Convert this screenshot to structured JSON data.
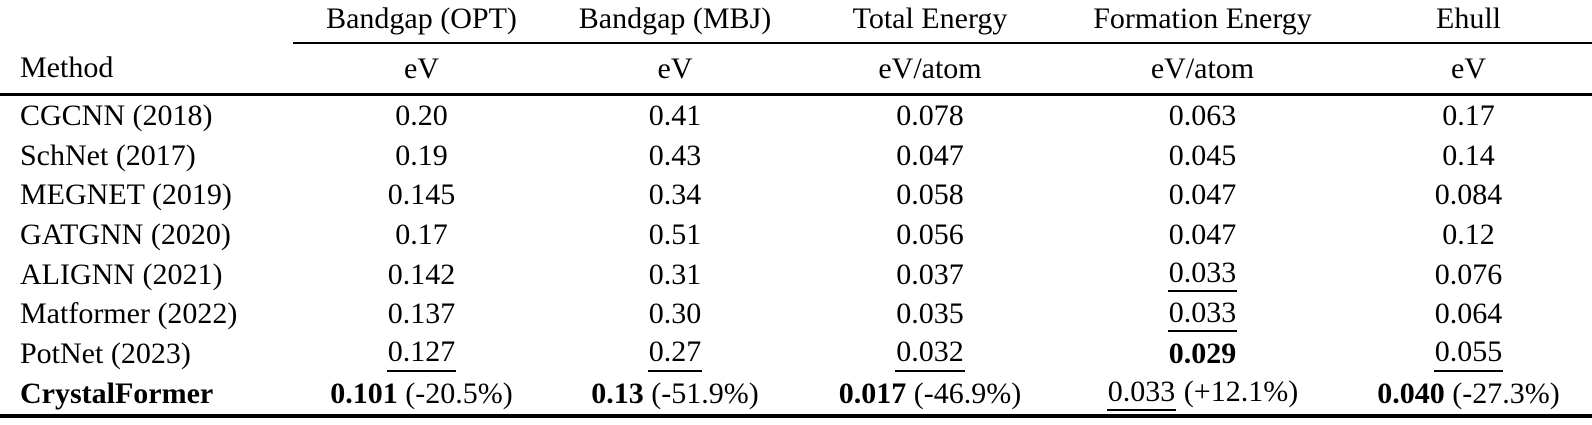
{
  "colors": {
    "text": "#000000",
    "background": "#ffffff",
    "rule": "#000000"
  },
  "table": {
    "method_header": "Method",
    "col_groups": [
      {
        "label": "Bandgap (OPT)",
        "unit": "eV"
      },
      {
        "label": "Bandgap (MBJ)",
        "unit": "eV"
      },
      {
        "label": "Total Energy",
        "unit": "eV/atom"
      },
      {
        "label": "Formation Energy",
        "unit": "eV/atom"
      },
      {
        "label": "Ehull",
        "unit": "eV"
      }
    ],
    "rows": [
      {
        "method": "CGCNN (2018)",
        "cells": [
          {
            "v": "0.20"
          },
          {
            "v": "0.41"
          },
          {
            "v": "0.078"
          },
          {
            "v": "0.063"
          },
          {
            "v": "0.17"
          }
        ]
      },
      {
        "method": "SchNet (2017)",
        "cells": [
          {
            "v": "0.19"
          },
          {
            "v": "0.43"
          },
          {
            "v": "0.047"
          },
          {
            "v": "0.045"
          },
          {
            "v": "0.14"
          }
        ]
      },
      {
        "method": "MEGNET (2019)",
        "cells": [
          {
            "v": "0.145"
          },
          {
            "v": "0.34"
          },
          {
            "v": "0.058"
          },
          {
            "v": "0.047"
          },
          {
            "v": "0.084"
          }
        ]
      },
      {
        "method": "GATGNN (2020)",
        "cells": [
          {
            "v": "0.17"
          },
          {
            "v": "0.51"
          },
          {
            "v": "0.056"
          },
          {
            "v": "0.047"
          },
          {
            "v": "0.12"
          }
        ]
      },
      {
        "method": "ALIGNN (2021)",
        "cells": [
          {
            "v": "0.142"
          },
          {
            "v": "0.31"
          },
          {
            "v": "0.037"
          },
          {
            "v": "0.033",
            "style": "underline"
          },
          {
            "v": "0.076"
          }
        ]
      },
      {
        "method": "Matformer (2022)",
        "cells": [
          {
            "v": "0.137"
          },
          {
            "v": "0.30"
          },
          {
            "v": "0.035"
          },
          {
            "v": "0.033",
            "style": "underline"
          },
          {
            "v": "0.064"
          }
        ]
      },
      {
        "method": "PotNet (2023)",
        "cells": [
          {
            "v": "0.127",
            "style": "underline"
          },
          {
            "v": "0.27",
            "style": "underline"
          },
          {
            "v": "0.032",
            "style": "underline"
          },
          {
            "v": "0.029",
            "style": "bold"
          },
          {
            "v": "0.055",
            "style": "underline"
          }
        ]
      },
      {
        "method": "CrystalFormer",
        "method_bold": true,
        "cells": [
          {
            "v": "0.101",
            "style": "bold",
            "pct": "(-20.5%)"
          },
          {
            "v": "0.13",
            "style": "bold",
            "pct": "(-51.9%)"
          },
          {
            "v": "0.017",
            "style": "bold",
            "pct": "(-46.9%)"
          },
          {
            "v": "0.033",
            "style": "underline",
            "pct": "(+12.1%)"
          },
          {
            "v": "0.040",
            "style": "bold",
            "pct": "(-27.3%)"
          }
        ]
      }
    ]
  }
}
